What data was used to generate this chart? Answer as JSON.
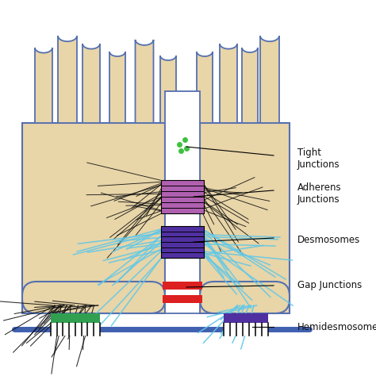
{
  "bg_color": "#ffffff",
  "cell_color": "#e8d5a8",
  "cell_outline": "#5570b0",
  "base_line_color": "#4060b0",
  "fiber_dark": "#111111",
  "fiber_light": "#60c8e8",
  "adherens_color": "#b060b0",
  "desmosome_color": "#5030a0",
  "gap_junction_color": "#dd2020",
  "hemi_left_color": "#30a050",
  "hemi_right_color": "#5030a0",
  "stripe_color": "#111111",
  "label_color": "#111111",
  "tight_green": "#40c040",
  "labels": {
    "tight": [
      "Tight",
      "Junctions"
    ],
    "adherens": [
      "Adherens",
      "Junctions"
    ],
    "desmosome": [
      "Desmosomes"
    ],
    "gap": [
      "Gap Junctions"
    ],
    "hemi": [
      "Hemidesmosomes"
    ]
  },
  "fontsize": 8.5
}
